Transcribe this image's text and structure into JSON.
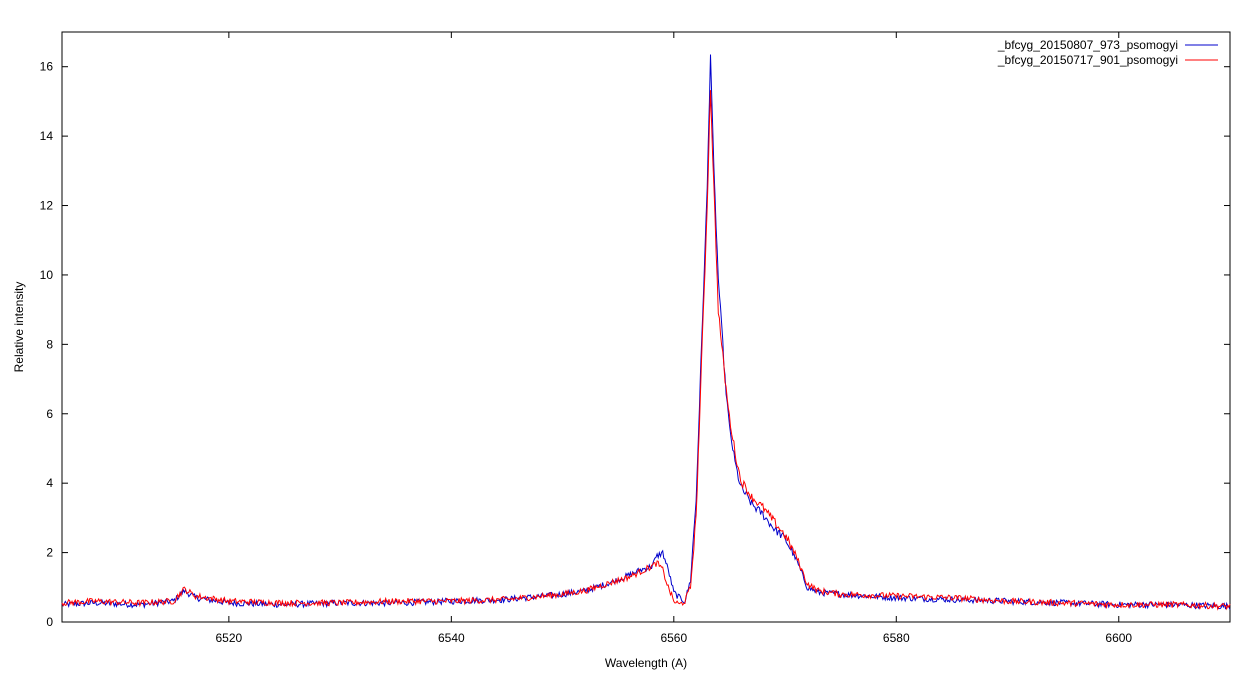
{
  "chart_data": {
    "type": "line",
    "title": "",
    "xlabel": "Wavelength (A)",
    "ylabel": "Relative intensity",
    "xlim": [
      6505,
      6610
    ],
    "ylim": [
      0,
      17
    ],
    "xticks": [
      6520,
      6540,
      6560,
      6580,
      6600
    ],
    "yticks": [
      0,
      2,
      4,
      6,
      8,
      10,
      12,
      14,
      16
    ],
    "grid": false,
    "legend_position": "top-right",
    "series": [
      {
        "name": "_bfcyg_20150807_973_psomogyi",
        "color": "#0000cc",
        "x": [
          6505,
          6508,
          6512,
          6515,
          6516,
          6517,
          6520,
          6525,
          6530,
          6535,
          6540,
          6545,
          6550,
          6552,
          6554,
          6556,
          6557,
          6558,
          6558.5,
          6559,
          6559.5,
          6560,
          6560.5,
          6561,
          6561.5,
          6562,
          6562.5,
          6563,
          6563.3,
          6563.6,
          6564,
          6564.3,
          6564.6,
          6565,
          6565.5,
          6566,
          6567,
          6568,
          6569,
          6570,
          6571,
          6572,
          6573,
          6575,
          6580,
          6585,
          6590,
          6595,
          6600,
          6605,
          6610
        ],
        "y": [
          0.5,
          0.55,
          0.5,
          0.6,
          0.9,
          0.7,
          0.55,
          0.5,
          0.55,
          0.55,
          0.6,
          0.65,
          0.8,
          0.9,
          1.1,
          1.35,
          1.5,
          1.6,
          1.9,
          2.0,
          1.5,
          0.85,
          0.7,
          0.6,
          1.2,
          3.5,
          8.0,
          12.5,
          16.4,
          13.0,
          9.9,
          8.5,
          7.0,
          5.6,
          4.6,
          3.9,
          3.4,
          3.1,
          2.7,
          2.4,
          1.8,
          1.0,
          0.85,
          0.8,
          0.7,
          0.65,
          0.6,
          0.55,
          0.5,
          0.5,
          0.45
        ]
      },
      {
        "name": "_bfcyg_20150717_901_psomogyi",
        "color": "#ff0000",
        "x": [
          6505,
          6508,
          6512,
          6515,
          6516,
          6517,
          6520,
          6525,
          6530,
          6535,
          6540,
          6545,
          6550,
          6552,
          6554,
          6556,
          6557,
          6558,
          6558.5,
          6559,
          6559.5,
          6560,
          6560.5,
          6561,
          6561.5,
          6562,
          6562.5,
          6563,
          6563.3,
          6563.6,
          6564,
          6564.3,
          6564.6,
          6565,
          6565.5,
          6566,
          6567,
          6568,
          6569,
          6570,
          6571,
          6572,
          6573,
          6575,
          6580,
          6585,
          6590,
          6595,
          6600,
          6605,
          6610
        ],
        "y": [
          0.55,
          0.6,
          0.55,
          0.6,
          0.95,
          0.75,
          0.6,
          0.55,
          0.55,
          0.6,
          0.6,
          0.65,
          0.8,
          0.9,
          1.1,
          1.3,
          1.45,
          1.6,
          1.7,
          1.5,
          1.0,
          0.6,
          0.5,
          0.6,
          1.0,
          3.0,
          7.5,
          12.0,
          15.4,
          12.5,
          9.0,
          8.0,
          7.0,
          5.9,
          4.9,
          4.1,
          3.6,
          3.3,
          2.9,
          2.5,
          1.9,
          1.1,
          0.9,
          0.8,
          0.75,
          0.7,
          0.6,
          0.55,
          0.5,
          0.5,
          0.45
        ]
      }
    ]
  }
}
